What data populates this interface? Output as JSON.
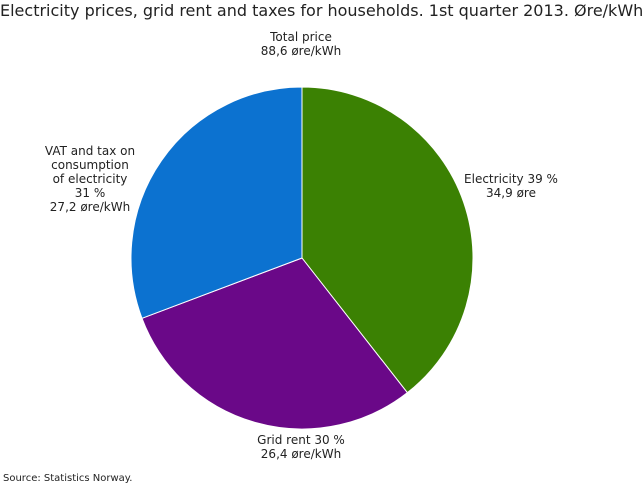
{
  "chart_data": {
    "type": "pie",
    "title": "Electricity prices, grid rent and taxes for households. 1st quarter 2013. Øre/kWh",
    "center_label": {
      "line1": "Total price",
      "line2": "88,6 øre/kWh"
    },
    "total": 88.6,
    "unit": "øre/kWh",
    "start_angle_deg": 0,
    "direction": "clockwise",
    "slices": [
      {
        "name": "Electricity",
        "value": 34.9,
        "percent": 39,
        "color": "#3b8103",
        "label_lines": [
          "Electricity 39 %",
          "34,9 øre"
        ]
      },
      {
        "name": "Grid rent",
        "value": 26.4,
        "percent": 30,
        "color": "#6a0888",
        "label_lines": [
          "Grid rent 30 %",
          "26,4 øre/kWh"
        ]
      },
      {
        "name": "VAT and tax on consumption of electricity",
        "value": 27.2,
        "percent": 31,
        "color": "#0c72d0",
        "label_lines": [
          "VAT and tax on",
          "consumption",
          "of electricity",
          "31 %",
          "27,2 øre/kWh"
        ]
      }
    ]
  },
  "source": "Source: Statistics Norway."
}
